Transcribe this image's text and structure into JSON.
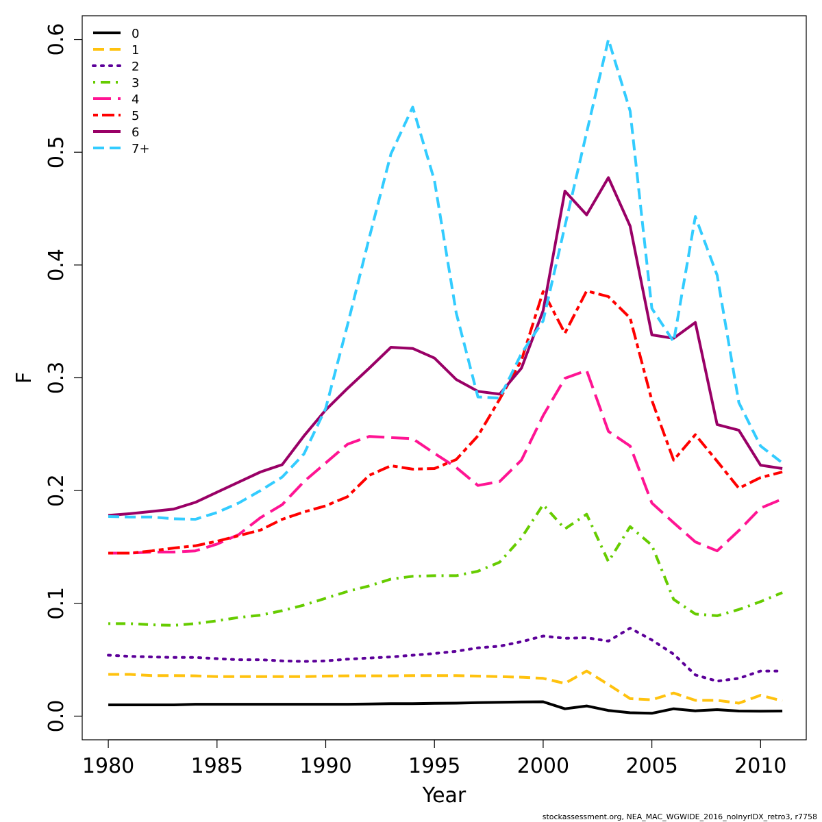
{
  "credit": "stockassessment.org, NEA_MAC_WGWIDE_2016_nolnyrIDX_retro3, r7758",
  "chart_data": {
    "type": "line",
    "xlabel": "Year",
    "ylabel": "F",
    "xlim": [
      1978.8,
      2012.1
    ],
    "ylim": [
      -0.021,
      0.621
    ],
    "xticks": [
      1980,
      1985,
      1990,
      1995,
      2000,
      2005,
      2010
    ],
    "yticks": [
      0.0,
      0.1,
      0.2,
      0.3,
      0.4,
      0.5,
      0.6
    ],
    "ytick_labels": [
      "0.0",
      "0.1",
      "0.2",
      "0.3",
      "0.4",
      "0.5",
      "0.6"
    ],
    "grid": false,
    "legend_position": "top-left",
    "x": [
      1980,
      1981,
      1982,
      1983,
      1984,
      1985,
      1986,
      1987,
      1988,
      1989,
      1990,
      1991,
      1992,
      1993,
      1994,
      1995,
      1996,
      1997,
      1998,
      1999,
      2000,
      2001,
      2002,
      2003,
      2004,
      2005,
      2006,
      2007,
      2008,
      2009,
      2010,
      2011
    ],
    "series": [
      {
        "name": "0",
        "color": "#000000",
        "dash": "solid",
        "values": [
          0.01,
          0.01,
          0.01,
          0.01,
          0.0105,
          0.0105,
          0.0105,
          0.0105,
          0.0105,
          0.0105,
          0.0105,
          0.0105,
          0.0107,
          0.011,
          0.011,
          0.0113,
          0.0115,
          0.012,
          0.0122,
          0.0125,
          0.0127,
          0.0065,
          0.009,
          0.005,
          0.003,
          0.0025,
          0.0065,
          0.0047,
          0.0057,
          0.0045,
          0.0043,
          0.0045
        ]
      },
      {
        "name": "1",
        "color": "#ffc20e",
        "dash": "dashed",
        "values": [
          0.037,
          0.037,
          0.036,
          0.036,
          0.0357,
          0.035,
          0.035,
          0.035,
          0.035,
          0.035,
          0.0355,
          0.0357,
          0.0357,
          0.0357,
          0.036,
          0.036,
          0.036,
          0.0355,
          0.035,
          0.0345,
          0.0335,
          0.029,
          0.04,
          0.028,
          0.0155,
          0.0145,
          0.0205,
          0.014,
          0.014,
          0.0115,
          0.0185,
          0.0135
        ]
      },
      {
        "name": "2",
        "color": "#5c0099",
        "dash": "dotted",
        "values": [
          0.054,
          0.053,
          0.0525,
          0.052,
          0.052,
          0.051,
          0.05,
          0.05,
          0.049,
          0.0485,
          0.049,
          0.0505,
          0.0515,
          0.0525,
          0.054,
          0.0555,
          0.0575,
          0.0605,
          0.062,
          0.066,
          0.071,
          0.069,
          0.0695,
          0.0665,
          0.078,
          0.0675,
          0.055,
          0.0365,
          0.031,
          0.0335,
          0.04,
          0.04
        ]
      },
      {
        "name": "3",
        "color": "#66cc00",
        "dash": "dotdash",
        "values": [
          0.082,
          0.082,
          0.081,
          0.0805,
          0.082,
          0.0845,
          0.0875,
          0.0895,
          0.0935,
          0.0985,
          0.1045,
          0.1105,
          0.1155,
          0.1215,
          0.124,
          0.1245,
          0.1245,
          0.1285,
          0.1365,
          0.158,
          0.1875,
          0.166,
          0.179,
          0.137,
          0.168,
          0.1515,
          0.1035,
          0.0905,
          0.089,
          0.0945,
          0.1015,
          0.1095
        ]
      },
      {
        "name": "4",
        "color": "#ff1493",
        "dash": "longdash",
        "values": [
          0.1445,
          0.1445,
          0.1455,
          0.1455,
          0.1465,
          0.1525,
          0.161,
          0.176,
          0.1875,
          0.208,
          0.2245,
          0.241,
          0.248,
          0.247,
          0.246,
          0.233,
          0.2205,
          0.2045,
          0.208,
          0.227,
          0.2665,
          0.2995,
          0.3065,
          0.2525,
          0.2395,
          0.189,
          0.1715,
          0.1545,
          0.1465,
          0.1645,
          0.1845,
          0.1925
        ]
      },
      {
        "name": "5",
        "color": "#ff0000",
        "dash": "twodash",
        "values": [
          0.1445,
          0.1445,
          0.1465,
          0.149,
          0.151,
          0.155,
          0.16,
          0.165,
          0.1745,
          0.181,
          0.1865,
          0.1945,
          0.2135,
          0.222,
          0.219,
          0.2195,
          0.2275,
          0.2485,
          0.281,
          0.3155,
          0.3765,
          0.3395,
          0.377,
          0.372,
          0.353,
          0.28,
          0.227,
          0.2495,
          0.226,
          0.202,
          0.2115,
          0.2165
        ]
      },
      {
        "name": "6",
        "color": "#990066",
        "dash": "solid",
        "values": [
          0.178,
          0.1795,
          0.1815,
          0.1835,
          0.1895,
          0.1985,
          0.2075,
          0.2165,
          0.223,
          0.2485,
          0.2715,
          0.2905,
          0.3085,
          0.327,
          0.326,
          0.3175,
          0.2985,
          0.288,
          0.2855,
          0.3085,
          0.3595,
          0.4655,
          0.4445,
          0.4775,
          0.4345,
          0.338,
          0.335,
          0.349,
          0.2585,
          0.2535,
          0.2225,
          0.2195
        ]
      },
      {
        "name": "7+",
        "color": "#33ccff",
        "dash": "dashed",
        "values": [
          0.177,
          0.1765,
          0.1765,
          0.175,
          0.1745,
          0.1805,
          0.189,
          0.2,
          0.212,
          0.2325,
          0.273,
          0.3465,
          0.424,
          0.4985,
          0.54,
          0.475,
          0.3575,
          0.283,
          0.282,
          0.3215,
          0.3505,
          0.4345,
          0.5175,
          0.6,
          0.5365,
          0.3615,
          0.332,
          0.443,
          0.391,
          0.278,
          0.2395,
          0.2245
        ]
      }
    ]
  }
}
